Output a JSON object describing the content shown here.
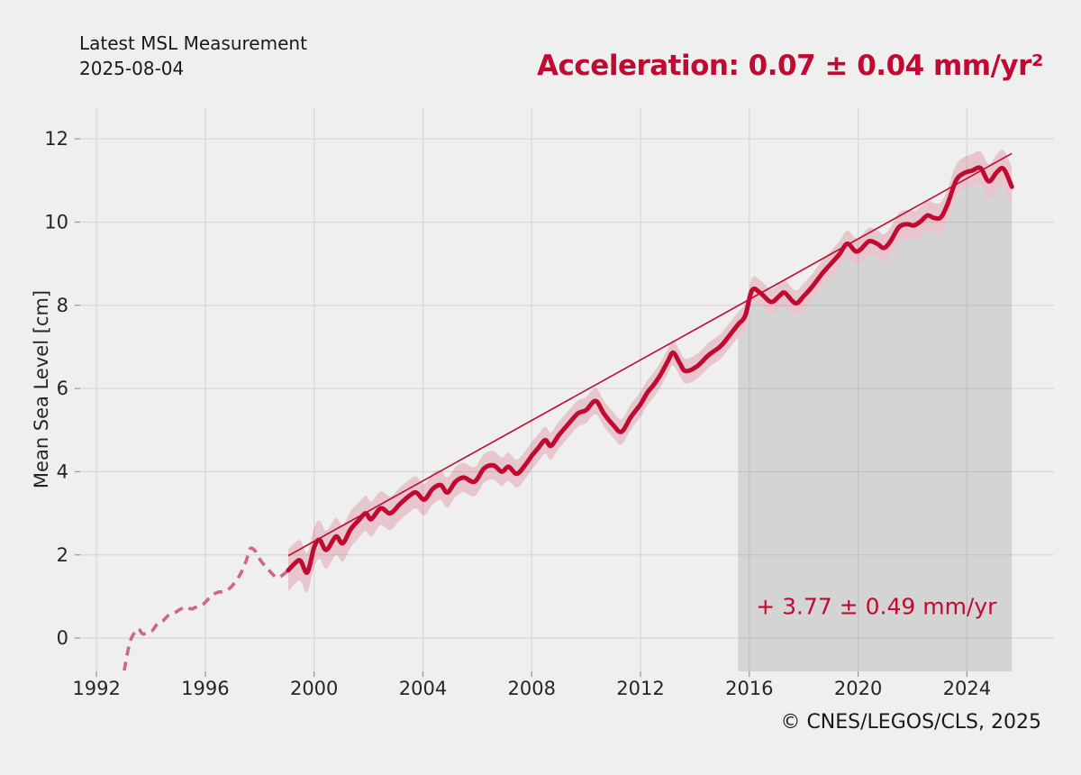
{
  "header": {
    "title_line1": "Latest MSL Measurement",
    "title_line2": "2025-08-04",
    "acceleration": "Acceleration: 0.07 ± 0.04 mm/yr²"
  },
  "footer": {
    "copyright": "© CNES/LEGOS/CLS, 2025"
  },
  "chart_data": {
    "type": "line",
    "title": "",
    "xlabel": "",
    "ylabel": "Mean Sea Level [cm]",
    "xlim": [
      1991.4,
      2027.2
    ],
    "ylim": [
      -0.8,
      12.74
    ],
    "x_ticks": [
      1992,
      1996,
      2000,
      2004,
      2008,
      2012,
      2016,
      2020,
      2024
    ],
    "y_ticks": [
      0,
      2,
      4,
      6,
      8,
      10,
      12
    ],
    "grid": true,
    "legend_position": "none",
    "trend_annotation": "+ 3.77 ± 0.49 mm/yr",
    "annotation_anchor": {
      "year": 2020.67,
      "value": 0.58
    },
    "trend_line": {
      "x": [
        1999.05,
        2025.65
      ],
      "y": [
        1.98,
        11.65
      ]
    },
    "highlight_span": {
      "x_start": 2015.59,
      "x_end": 2025.65
    },
    "band_halfwidth": {
      "x": [
        1999.05,
        2001,
        2003,
        2005,
        2008,
        2012,
        2016,
        2019,
        2021,
        2023,
        2024.5,
        2025.65
      ],
      "hw": [
        0.5,
        0.44,
        0.4,
        0.36,
        0.33,
        0.3,
        0.3,
        0.31,
        0.33,
        0.36,
        0.4,
        0.46
      ]
    },
    "series": [
      {
        "name": "msl_early_uncorrected",
        "style": "dashed",
        "points": [
          [
            1993.02,
            -0.78
          ],
          [
            1993.12,
            -0.42
          ],
          [
            1993.25,
            -0.05
          ],
          [
            1993.42,
            0.15
          ],
          [
            1993.55,
            0.22
          ],
          [
            1993.7,
            0.1
          ],
          [
            1993.9,
            0.15
          ],
          [
            1994.05,
            0.18
          ],
          [
            1994.25,
            0.35
          ],
          [
            1994.45,
            0.42
          ],
          [
            1994.65,
            0.55
          ],
          [
            1994.9,
            0.62
          ],
          [
            1995.1,
            0.7
          ],
          [
            1995.3,
            0.75
          ],
          [
            1995.5,
            0.7
          ],
          [
            1995.75,
            0.78
          ],
          [
            1995.95,
            0.83
          ],
          [
            1996.2,
            1.0
          ],
          [
            1996.45,
            1.1
          ],
          [
            1996.7,
            1.12
          ],
          [
            1996.9,
            1.2
          ],
          [
            1997.1,
            1.35
          ],
          [
            1997.3,
            1.55
          ],
          [
            1997.5,
            1.85
          ],
          [
            1997.65,
            2.15
          ],
          [
            1997.85,
            2.08
          ],
          [
            1998.05,
            1.85
          ],
          [
            1998.25,
            1.7
          ],
          [
            1998.45,
            1.55
          ],
          [
            1998.65,
            1.45
          ],
          [
            1998.85,
            1.52
          ],
          [
            1999.05,
            1.63
          ]
        ]
      },
      {
        "name": "msl_filtered",
        "style": "solid",
        "points": [
          [
            1999.05,
            1.63
          ],
          [
            1999.3,
            1.8
          ],
          [
            1999.5,
            1.86
          ],
          [
            1999.75,
            1.58
          ],
          [
            2000.0,
            2.18
          ],
          [
            2000.2,
            2.36
          ],
          [
            2000.45,
            2.12
          ],
          [
            2000.8,
            2.44
          ],
          [
            2001.05,
            2.28
          ],
          [
            2001.35,
            2.62
          ],
          [
            2001.65,
            2.84
          ],
          [
            2001.9,
            3.0
          ],
          [
            2002.1,
            2.86
          ],
          [
            2002.45,
            3.12
          ],
          [
            2002.8,
            3.0
          ],
          [
            2003.15,
            3.22
          ],
          [
            2003.5,
            3.42
          ],
          [
            2003.75,
            3.5
          ],
          [
            2004.05,
            3.33
          ],
          [
            2004.35,
            3.58
          ],
          [
            2004.65,
            3.68
          ],
          [
            2004.9,
            3.5
          ],
          [
            2005.2,
            3.76
          ],
          [
            2005.5,
            3.86
          ],
          [
            2005.9,
            3.76
          ],
          [
            2006.25,
            4.08
          ],
          [
            2006.6,
            4.15
          ],
          [
            2006.9,
            4.0
          ],
          [
            2007.15,
            4.12
          ],
          [
            2007.45,
            3.95
          ],
          [
            2007.75,
            4.15
          ],
          [
            2008.0,
            4.38
          ],
          [
            2008.25,
            4.58
          ],
          [
            2008.5,
            4.76
          ],
          [
            2008.7,
            4.62
          ],
          [
            2009.0,
            4.88
          ],
          [
            2009.35,
            5.15
          ],
          [
            2009.7,
            5.4
          ],
          [
            2010.0,
            5.48
          ],
          [
            2010.35,
            5.7
          ],
          [
            2010.65,
            5.4
          ],
          [
            2011.0,
            5.12
          ],
          [
            2011.3,
            4.96
          ],
          [
            2011.65,
            5.32
          ],
          [
            2012.0,
            5.62
          ],
          [
            2012.25,
            5.9
          ],
          [
            2012.5,
            6.1
          ],
          [
            2012.75,
            6.35
          ],
          [
            2013.0,
            6.65
          ],
          [
            2013.2,
            6.86
          ],
          [
            2013.45,
            6.6
          ],
          [
            2013.65,
            6.42
          ],
          [
            2014.05,
            6.52
          ],
          [
            2014.5,
            6.8
          ],
          [
            2014.95,
            7.02
          ],
          [
            2015.3,
            7.3
          ],
          [
            2015.6,
            7.55
          ],
          [
            2015.85,
            7.75
          ],
          [
            2016.1,
            8.36
          ],
          [
            2016.4,
            8.3
          ],
          [
            2016.8,
            8.08
          ],
          [
            2017.1,
            8.22
          ],
          [
            2017.3,
            8.3
          ],
          [
            2017.7,
            8.05
          ],
          [
            2018.0,
            8.22
          ],
          [
            2018.3,
            8.44
          ],
          [
            2018.7,
            8.78
          ],
          [
            2019.0,
            9.0
          ],
          [
            2019.3,
            9.22
          ],
          [
            2019.6,
            9.48
          ],
          [
            2019.9,
            9.3
          ],
          [
            2020.1,
            9.35
          ],
          [
            2020.4,
            9.54
          ],
          [
            2020.7,
            9.48
          ],
          [
            2020.95,
            9.38
          ],
          [
            2021.2,
            9.55
          ],
          [
            2021.5,
            9.88
          ],
          [
            2021.8,
            9.95
          ],
          [
            2022.05,
            9.92
          ],
          [
            2022.3,
            10.02
          ],
          [
            2022.55,
            10.16
          ],
          [
            2022.8,
            10.1
          ],
          [
            2023.05,
            10.12
          ],
          [
            2023.3,
            10.45
          ],
          [
            2023.6,
            11.0
          ],
          [
            2023.9,
            11.18
          ],
          [
            2024.2,
            11.24
          ],
          [
            2024.5,
            11.3
          ],
          [
            2024.8,
            10.98
          ],
          [
            2025.1,
            11.2
          ],
          [
            2025.35,
            11.28
          ],
          [
            2025.65,
            10.85
          ]
        ]
      }
    ],
    "colors": {
      "line": "#c00a31",
      "dashed_line": "#d0677e",
      "band": "rgba(192,10,49,0.18)",
      "trend": "#c00a31",
      "highlight": "rgba(118,118,118,0.22)",
      "grid": "#d8d8d8",
      "tick": "#9a9a9a",
      "tick_text": "#262626",
      "background": "#efefef",
      "accent_red": "#c00a31"
    }
  }
}
